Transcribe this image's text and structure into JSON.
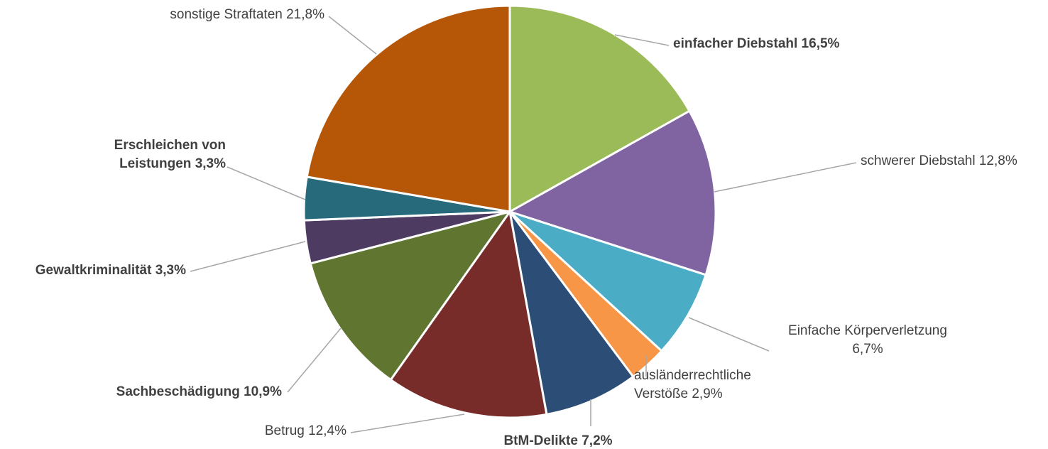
{
  "chart_data": {
    "type": "pie",
    "title": "",
    "slices": [
      {
        "label": [
          "einfacher Diebstahl 16,5%"
        ],
        "value": 16.5,
        "color": "#9bbb59",
        "bold": true
      },
      {
        "label": [
          "schwerer Diebstahl 12,8%"
        ],
        "value": 12.8,
        "color": "#8064a2",
        "bold": false
      },
      {
        "label": [
          "Einfache Körperverletzung",
          "6,7%"
        ],
        "value": 6.7,
        "color": "#4bacc6",
        "bold": false
      },
      {
        "label": [
          "ausländerrechtliche",
          "Verstöße 2,9%"
        ],
        "value": 2.9,
        "color": "#f79646",
        "bold": false
      },
      {
        "label": [
          "BtM-Delikte 7,2%"
        ],
        "value": 7.2,
        "color": "#2c4d75",
        "bold": true
      },
      {
        "label": [
          "Betrug 12,4%"
        ],
        "value": 12.4,
        "color": "#772c2a",
        "bold": false
      },
      {
        "label": [
          "Sachbeschädigung  10,9%"
        ],
        "value": 10.9,
        "color": "#5f7530",
        "bold": true
      },
      {
        "label": [
          "Gewaltkriminalität 3,3%"
        ],
        "value": 3.3,
        "color": "#4d3b62",
        "bold": true
      },
      {
        "label": [
          "Erschleichen von",
          "Leistungen 3,3%"
        ],
        "value": 3.3,
        "color": "#276a7c",
        "bold": true
      },
      {
        "label": [
          "sonstige Straftaten 21,8%"
        ],
        "value": 21.8,
        "color": "#b65708",
        "bold": false
      }
    ]
  }
}
